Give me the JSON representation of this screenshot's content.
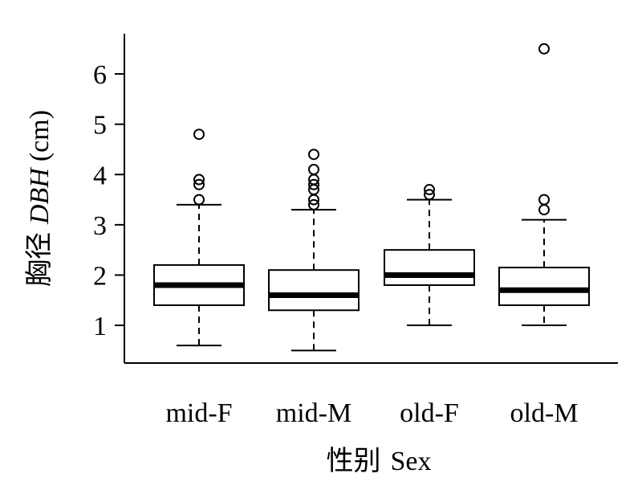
{
  "chart_data": {
    "type": "boxplot",
    "categories": [
      "mid-F",
      "mid-M",
      "old-F",
      "old-M"
    ],
    "xlabel": {
      "cn": "性别",
      "en": "Sex"
    },
    "ylabel": {
      "cn": "胸径",
      "var": "DBH",
      "unit": "(cm)"
    },
    "ylim": [
      0.25,
      6.8
    ],
    "yticks": [
      1,
      2,
      3,
      4,
      5,
      6
    ],
    "grid": false,
    "boxes": [
      {
        "category": "mid-F",
        "whisker_low": 0.6,
        "q1": 1.4,
        "median": 1.8,
        "q3": 2.2,
        "whisker_high": 3.4,
        "outliers": [
          3.5,
          3.8,
          3.9,
          4.8
        ]
      },
      {
        "category": "mid-M",
        "whisker_low": 0.5,
        "q1": 1.3,
        "median": 1.6,
        "q3": 2.1,
        "whisker_high": 3.3,
        "outliers": [
          3.4,
          3.5,
          3.7,
          3.8,
          3.9,
          4.1,
          4.4
        ]
      },
      {
        "category": "old-F",
        "whisker_low": 1.0,
        "q1": 1.8,
        "median": 2.0,
        "q3": 2.5,
        "whisker_high": 3.5,
        "outliers": [
          3.6,
          3.7
        ]
      },
      {
        "category": "old-M",
        "whisker_low": 1.0,
        "q1": 1.4,
        "median": 1.7,
        "q3": 2.15,
        "whisker_high": 3.1,
        "outliers": [
          3.3,
          3.5,
          6.5
        ]
      }
    ]
  }
}
